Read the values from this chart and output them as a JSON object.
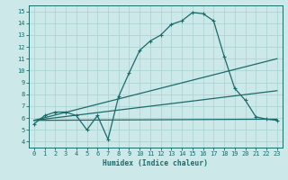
{
  "xlabel": "Humidex (Indice chaleur)",
  "background_color": "#cce8e8",
  "line_color": "#1a6b6b",
  "grid_color": "#a8d0d0",
  "xlim": [
    -0.5,
    23.5
  ],
  "ylim": [
    3.5,
    15.5
  ],
  "xticks": [
    0,
    1,
    2,
    3,
    4,
    5,
    6,
    7,
    8,
    9,
    10,
    11,
    12,
    13,
    14,
    15,
    16,
    17,
    18,
    19,
    20,
    21,
    22,
    23
  ],
  "yticks": [
    4,
    5,
    6,
    7,
    8,
    9,
    10,
    11,
    12,
    13,
    14,
    15
  ],
  "main_line": {
    "x": [
      0,
      1,
      2,
      3,
      4,
      5,
      6,
      7,
      8,
      9,
      10,
      11,
      12,
      13,
      14,
      15,
      16,
      17,
      18,
      19,
      20,
      21,
      22,
      23
    ],
    "y": [
      5.5,
      6.2,
      6.5,
      6.5,
      6.2,
      5.0,
      6.2,
      4.2,
      7.8,
      9.8,
      11.7,
      12.5,
      13.0,
      13.9,
      14.2,
      14.9,
      14.8,
      14.2,
      11.2,
      8.5,
      7.5,
      6.1,
      5.9,
      5.8
    ]
  },
  "straight1": {
    "x": [
      0,
      23
    ],
    "y": [
      5.8,
      11.0
    ]
  },
  "straight2": {
    "x": [
      0,
      23
    ],
    "y": [
      5.8,
      8.3
    ]
  },
  "straight3": {
    "x": [
      0,
      23
    ],
    "y": [
      5.8,
      5.9
    ]
  }
}
